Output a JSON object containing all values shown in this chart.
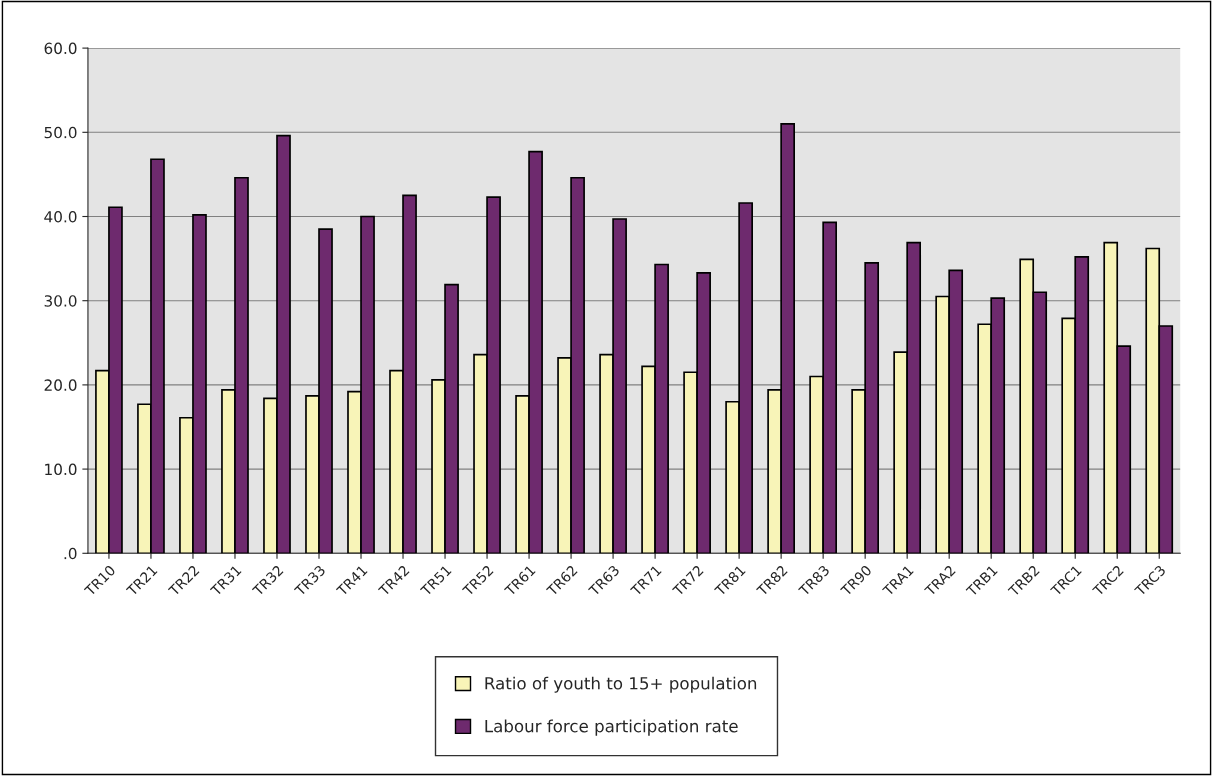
{
  "chart_data": {
    "type": "bar",
    "categories": [
      "TR10",
      "TR21",
      "TR22",
      "TR31",
      "TR32",
      "TR33",
      "TR41",
      "TR42",
      "TR51",
      "TR52",
      "TR61",
      "TR62",
      "TR63",
      "TR71",
      "TR72",
      "TR81",
      "TR82",
      "TR83",
      "TR90",
      "TRA1",
      "TRA2",
      "TRB1",
      "TRB2",
      "TRC1",
      "TRC2",
      "TRC3"
    ],
    "series": [
      {
        "name": "Ratio of youth to 15+ population",
        "color": "#f8f4b8",
        "values": [
          21.7,
          17.7,
          16.1,
          19.4,
          18.4,
          18.7,
          19.2,
          21.7,
          20.6,
          23.6,
          18.7,
          23.2,
          23.6,
          22.2,
          21.5,
          18.0,
          19.4,
          21.0,
          19.4,
          23.9,
          30.5,
          27.2,
          34.9,
          27.9,
          36.9,
          36.2
        ]
      },
      {
        "name": "Labour force participation rate",
        "color": "#6e2a6e",
        "values": [
          41.1,
          46.8,
          40.2,
          44.6,
          49.6,
          38.5,
          40.0,
          42.5,
          31.9,
          42.3,
          47.7,
          44.6,
          39.7,
          34.3,
          33.3,
          41.6,
          51.0,
          39.3,
          34.5,
          36.9,
          33.6,
          30.3,
          31.0,
          35.2,
          24.6,
          27.0
        ]
      }
    ],
    "ylim": [
      0,
      60
    ],
    "yticks": [
      {
        "value": 0,
        "label": ".0"
      },
      {
        "value": 10,
        "label": "10.0"
      },
      {
        "value": 20,
        "label": "20.0"
      },
      {
        "value": 30,
        "label": "30.0"
      },
      {
        "value": 40,
        "label": "40.0"
      },
      {
        "value": 50,
        "label": "50.0"
      },
      {
        "value": 60,
        "label": "60.0"
      }
    ],
    "grid": "y",
    "legend": "bottom"
  }
}
